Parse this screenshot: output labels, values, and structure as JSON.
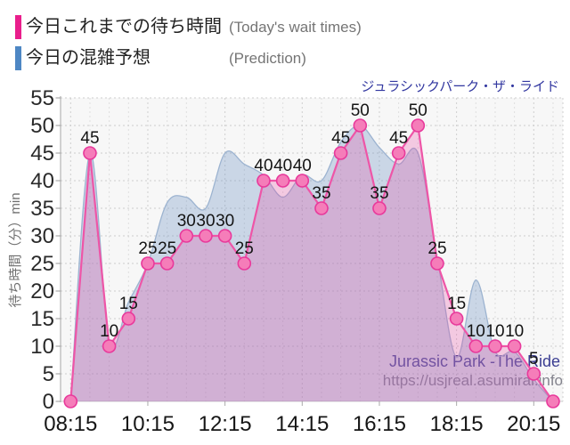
{
  "legend": [
    {
      "label": "今日これまでの待ち時間",
      "sublabel": "(Today's wait times)",
      "color": "#e91e8c"
    },
    {
      "label": "今日の混雑予想",
      "sublabel": "(Prediction)",
      "color": "#4e87c4"
    }
  ],
  "title": "ジュラシックパーク・ザ・ライド",
  "watermark": {
    "line1": "Jurassic Park -The Ride",
    "line2": "https://usjreal.asumirai.info"
  },
  "chart_data": {
    "type": "area",
    "title": "ジュラシックパーク・ザ・ライド",
    "ylabel": "待ち時間（分）min",
    "xlabel": "",
    "ylim": [
      0,
      55
    ],
    "y_tick_step": 5,
    "grid": true,
    "legend_position": "top-left",
    "x": [
      "08:15",
      "08:45",
      "09:15",
      "09:45",
      "10:15",
      "10:45",
      "11:15",
      "11:45",
      "12:15",
      "12:45",
      "13:15",
      "13:45",
      "14:15",
      "14:45",
      "15:15",
      "15:45",
      "16:15",
      "16:45",
      "17:15",
      "17:45",
      "18:15",
      "18:45",
      "19:15",
      "19:45",
      "20:15",
      "20:45"
    ],
    "x_ticks": [
      "08:15",
      "10:15",
      "12:15",
      "14:15",
      "16:15",
      "18:15",
      "20:15"
    ],
    "series": [
      {
        "name": "今日これまでの待ち時間",
        "type": "line-markers-labels",
        "smooth": false,
        "color": "#e91e8c",
        "line_color": "#ee55a7",
        "fill_color": "rgba(232,62,158,0.25)",
        "marker_fill": "#f57db9",
        "marker_stroke": "#e8399b",
        "values": [
          0,
          45,
          10,
          15,
          25,
          25,
          30,
          30,
          30,
          25,
          40,
          40,
          40,
          35,
          45,
          50,
          35,
          45,
          50,
          25,
          15,
          10,
          10,
          10,
          5,
          0
        ]
      },
      {
        "name": "今日の混雑予想",
        "type": "area-smooth",
        "smooth": true,
        "color": "#4e87c4",
        "line_color": "#9cb3d0",
        "fill_color": "rgba(110,145,195,0.32)",
        "values": [
          0,
          45,
          11,
          18,
          25,
          36,
          37,
          35,
          45,
          43,
          41,
          37,
          41,
          40,
          47,
          50,
          46,
          43,
          45,
          26,
          8,
          22,
          9,
          9,
          4,
          0
        ]
      }
    ]
  }
}
